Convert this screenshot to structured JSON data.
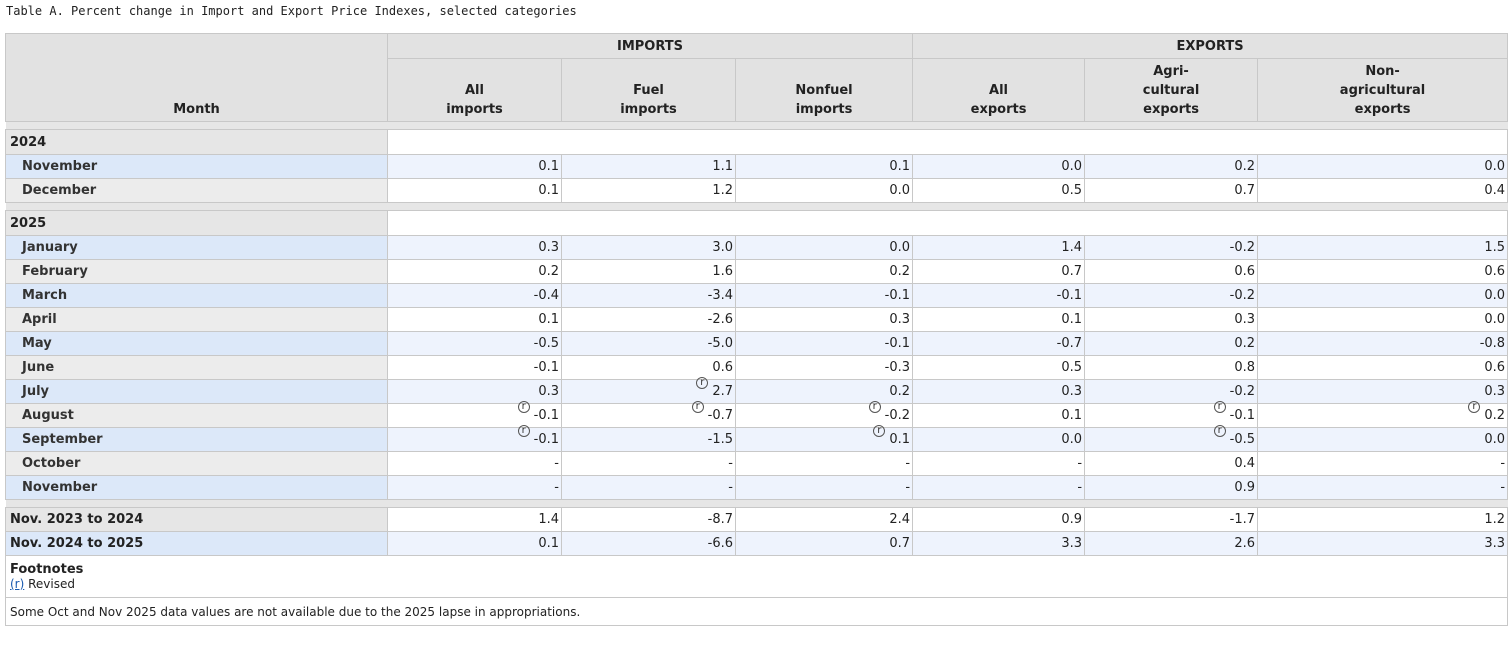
{
  "caption": "Table A. Percent change in Import and Export Price Indexes, selected categories",
  "headers": {
    "month": "Month",
    "imports_group": "IMPORTS",
    "exports_group": "EXPORTS",
    "cols": [
      [
        "All",
        "imports"
      ],
      [
        "Fuel",
        "imports"
      ],
      [
        "Nonfuel",
        "imports"
      ],
      [
        "All",
        "exports"
      ],
      [
        "Agri-",
        "cultural",
        "exports"
      ],
      [
        "Non-",
        "agricultural",
        "exports"
      ]
    ]
  },
  "sections": [
    {
      "year": "2024",
      "rows": [
        {
          "month": "November",
          "values": [
            "0.1",
            "1.1",
            "0.1",
            "0.0",
            "0.2",
            "0.0"
          ],
          "rev": [
            false,
            false,
            false,
            false,
            false,
            false
          ]
        },
        {
          "month": "December",
          "values": [
            "0.1",
            "1.2",
            "0.0",
            "0.5",
            "0.7",
            "0.4"
          ],
          "rev": [
            false,
            false,
            false,
            false,
            false,
            false
          ]
        }
      ]
    },
    {
      "year": "2025",
      "rows": [
        {
          "month": "January",
          "values": [
            "0.3",
            "3.0",
            "0.0",
            "1.4",
            "-0.2",
            "1.5"
          ],
          "rev": [
            false,
            false,
            false,
            false,
            false,
            false
          ]
        },
        {
          "month": "February",
          "values": [
            "0.2",
            "1.6",
            "0.2",
            "0.7",
            "0.6",
            "0.6"
          ],
          "rev": [
            false,
            false,
            false,
            false,
            false,
            false
          ]
        },
        {
          "month": "March",
          "values": [
            "-0.4",
            "-3.4",
            "-0.1",
            "-0.1",
            "-0.2",
            "0.0"
          ],
          "rev": [
            false,
            false,
            false,
            false,
            false,
            false
          ]
        },
        {
          "month": "April",
          "values": [
            "0.1",
            "-2.6",
            "0.3",
            "0.1",
            "0.3",
            "0.0"
          ],
          "rev": [
            false,
            false,
            false,
            false,
            false,
            false
          ]
        },
        {
          "month": "May",
          "values": [
            "-0.5",
            "-5.0",
            "-0.1",
            "-0.7",
            "0.2",
            "-0.8"
          ],
          "rev": [
            false,
            false,
            false,
            false,
            false,
            false
          ]
        },
        {
          "month": "June",
          "values": [
            "-0.1",
            "0.6",
            "-0.3",
            "0.5",
            "0.8",
            "0.6"
          ],
          "rev": [
            false,
            false,
            false,
            false,
            false,
            false
          ]
        },
        {
          "month": "July",
          "values": [
            "0.3",
            "2.7",
            "0.2",
            "0.3",
            "-0.2",
            "0.3"
          ],
          "rev": [
            false,
            true,
            false,
            false,
            false,
            false
          ]
        },
        {
          "month": "August",
          "values": [
            "-0.1",
            "-0.7",
            "-0.2",
            "0.1",
            "-0.1",
            "0.2"
          ],
          "rev": [
            true,
            true,
            true,
            false,
            true,
            true
          ]
        },
        {
          "month": "September",
          "values": [
            "-0.1",
            "-1.5",
            "0.1",
            "0.0",
            "-0.5",
            "0.0"
          ],
          "rev": [
            true,
            false,
            true,
            false,
            true,
            false
          ]
        },
        {
          "month": "October",
          "values": [
            "-",
            "-",
            "-",
            "-",
            "0.4",
            "-"
          ],
          "rev": [
            false,
            false,
            false,
            false,
            false,
            false
          ]
        },
        {
          "month": "November",
          "values": [
            "-",
            "-",
            "-",
            "-",
            "0.9",
            "-"
          ],
          "rev": [
            false,
            false,
            false,
            false,
            false,
            false
          ]
        }
      ]
    }
  ],
  "summary": [
    {
      "label": "Nov. 2023 to 2024",
      "values": [
        "1.4",
        "-8.7",
        "2.4",
        "0.9",
        "-1.7",
        "1.2"
      ]
    },
    {
      "label": "Nov. 2024 to 2025",
      "values": [
        "0.1",
        "-6.6",
        "0.7",
        "3.3",
        "2.6",
        "3.3"
      ]
    }
  ],
  "footnotes": {
    "title": "Footnotes",
    "marker": "(r)",
    "marker_text": "Revised",
    "note": "Some Oct and Nov 2025 data values are not available due to the 2025 lapse in appropriations."
  }
}
